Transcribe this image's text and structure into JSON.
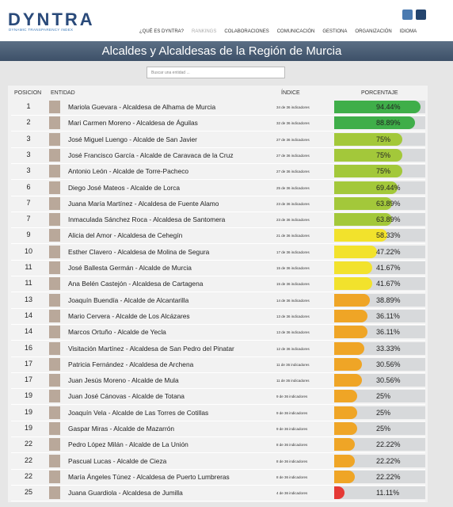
{
  "header": {
    "logo": "DYNTRA",
    "logo_subtitle": "DYNAMIC TRANSPARENCY INDEX",
    "nav": [
      "¿QUÉ ES DYNTRA?",
      "RANKINGS",
      "COLABORACIONES",
      "COMUNICACIÓN",
      "GESTIONA",
      "ORGANIZACIÓN",
      "IDIOMA"
    ]
  },
  "title": "Alcaldes y Alcaldesas de la Región de Murcia",
  "search_placeholder": "Buscar una entidad ...",
  "table": {
    "columns": [
      "POSICION",
      "ENTIDAD",
      "ÍNDICE",
      "PORCENTAJE"
    ],
    "rows": [
      {
        "position": "1",
        "entity": "Mariola Guevara - Alcaldesa de Alhama de Murcia",
        "index": "34 de 36 indicadores",
        "pct": 94.44,
        "pct_label": "94.44%",
        "color": "#3fae49"
      },
      {
        "position": "2",
        "entity": "Mari Carmen Moreno - Alcaldesa de Águilas",
        "index": "32 de 36 indicadores",
        "pct": 88.89,
        "pct_label": "88.89%",
        "color": "#3fae49"
      },
      {
        "position": "3",
        "entity": "José Miguel Luengo - Alcalde de San Javier",
        "index": "27 de 36 indicadores",
        "pct": 75,
        "pct_label": "75%",
        "color": "#a3c83a"
      },
      {
        "position": "3",
        "entity": "José Francisco García - Alcalde de Caravaca de la Cruz",
        "index": "27 de 36 indicadores",
        "pct": 75,
        "pct_label": "75%",
        "color": "#a3c83a"
      },
      {
        "position": "3",
        "entity": "Antonio León - Alcalde de Torre-Pacheco",
        "index": "27 de 36 indicadores",
        "pct": 75,
        "pct_label": "75%",
        "color": "#a3c83a"
      },
      {
        "position": "6",
        "entity": "Diego José Mateos - Alcalde de Lorca",
        "index": "25 de 36 indicadores",
        "pct": 69.44,
        "pct_label": "69.44%",
        "color": "#a3c83a"
      },
      {
        "position": "7",
        "entity": "Juana María Martínez - Alcaldesa de Fuente Alamo",
        "index": "23 de 36 indicadores",
        "pct": 63.89,
        "pct_label": "63.89%",
        "color": "#a3c83a"
      },
      {
        "position": "7",
        "entity": "Inmaculada Sánchez Roca - Alcaldesa de Santomera",
        "index": "23 de 36 indicadores",
        "pct": 63.89,
        "pct_label": "63.89%",
        "color": "#a3c83a"
      },
      {
        "position": "9",
        "entity": "Alicia del Amor - Alcaldesa de Cehegín",
        "index": "21 de 36 indicadores",
        "pct": 58.33,
        "pct_label": "58.33%",
        "color": "#f2e22c"
      },
      {
        "position": "10",
        "entity": "Esther Clavero - Alcaldesa de Molina de Segura",
        "index": "17 de 36 indicadores",
        "pct": 47.22,
        "pct_label": "47.22%",
        "color": "#f2e22c"
      },
      {
        "position": "11",
        "entity": "José Ballesta Germán - Alcalde de Murcia",
        "index": "15 de 36 indicadores",
        "pct": 41.67,
        "pct_label": "41.67%",
        "color": "#f2e22c"
      },
      {
        "position": "11",
        "entity": "Ana Belén Castejón - Alcaldesa de Cartagena",
        "index": "15 de 36 indicadores",
        "pct": 41.67,
        "pct_label": "41.67%",
        "color": "#f2e22c"
      },
      {
        "position": "13",
        "entity": "Joaquín Buendía - Alcalde de Alcantarilla",
        "index": "14 de 36 indicadores",
        "pct": 38.89,
        "pct_label": "38.89%",
        "color": "#efa526"
      },
      {
        "position": "14",
        "entity": "Mario Cervera - Alcalde de Los Alcázares",
        "index": "13 de 36 indicadores",
        "pct": 36.11,
        "pct_label": "36.11%",
        "color": "#efa526"
      },
      {
        "position": "14",
        "entity": "Marcos Ortuño - Alcalde de Yecla",
        "index": "13 de 36 indicadores",
        "pct": 36.11,
        "pct_label": "36.11%",
        "color": "#efa526"
      },
      {
        "position": "16",
        "entity": "Visitación Martínez - Alcaldesa de San Pedro del Pinatar",
        "index": "12 de 36 indicadores",
        "pct": 33.33,
        "pct_label": "33.33%",
        "color": "#efa526"
      },
      {
        "position": "17",
        "entity": "Patricia Fernández - Alcaldesa de Archena",
        "index": "11 de 36 indicadores",
        "pct": 30.56,
        "pct_label": "30.56%",
        "color": "#efa526"
      },
      {
        "position": "17",
        "entity": "Juan Jesús Moreno - Alcalde de Mula",
        "index": "11 de 36 indicadores",
        "pct": 30.56,
        "pct_label": "30.56%",
        "color": "#efa526"
      },
      {
        "position": "19",
        "entity": "Juan José Cánovas - Alcalde de Totana",
        "index": "9 de 36 indicadores",
        "pct": 25,
        "pct_label": "25%",
        "color": "#efa526"
      },
      {
        "position": "19",
        "entity": "Joaquín Vela - Alcalde de Las Torres de Cotillas",
        "index": "9 de 36 indicadores",
        "pct": 25,
        "pct_label": "25%",
        "color": "#efa526"
      },
      {
        "position": "19",
        "entity": "Gaspar Miras - Alcalde de Mazarrón",
        "index": "9 de 36 indicadores",
        "pct": 25,
        "pct_label": "25%",
        "color": "#efa526"
      },
      {
        "position": "22",
        "entity": "Pedro López Milán - Alcalde de La Unión",
        "index": "8 de 36 indicadores",
        "pct": 22.22,
        "pct_label": "22.22%",
        "color": "#efa526"
      },
      {
        "position": "22",
        "entity": "Pascual Lucas - Alcalde de Cieza",
        "index": "8 de 36 indicadores",
        "pct": 22.22,
        "pct_label": "22.22%",
        "color": "#efa526"
      },
      {
        "position": "22",
        "entity": "María Ángeles Túnez - Alcaldesa de Puerto Lumbreras",
        "index": "8 de 36 indicadores",
        "pct": 22.22,
        "pct_label": "22.22%",
        "color": "#efa526"
      },
      {
        "position": "25",
        "entity": "Juana Guardiola - Alcaldesa de Jumilla",
        "index": "4 de 36 indicadores",
        "pct": 11.11,
        "pct_label": "11.11%",
        "color": "#e53935"
      }
    ]
  }
}
